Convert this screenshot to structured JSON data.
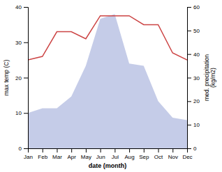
{
  "chart_data": {
    "type": "line",
    "categories": [
      "Jan",
      "Feb",
      "Mar",
      "Apr",
      "May",
      "Jun",
      "Jul",
      "Aug",
      "Sep",
      "Oct",
      "Nov",
      "Dec"
    ],
    "xlabel": "date (month)",
    "ylabel": "max temp (C)",
    "y2label": "med. precipitation\n(kg/m2)",
    "series": [
      {
        "type": "line",
        "color": "#cc4444",
        "values": [
          25,
          26,
          33,
          33,
          31,
          37.5,
          37.5,
          37.5,
          35,
          35,
          27,
          25
        ]
      },
      {
        "type": "area",
        "color": "#c5cce8",
        "axis": "y2",
        "values": [
          15,
          17,
          17,
          22,
          35,
          55,
          57,
          36,
          35,
          20,
          13,
          12
        ]
      }
    ],
    "ylim": [
      0,
      40
    ],
    "yticks": [
      0,
      10,
      20,
      30,
      40
    ],
    "y2lim": [
      0,
      60
    ],
    "y2ticks": [
      0,
      10,
      20,
      30,
      40,
      50,
      60
    ]
  }
}
